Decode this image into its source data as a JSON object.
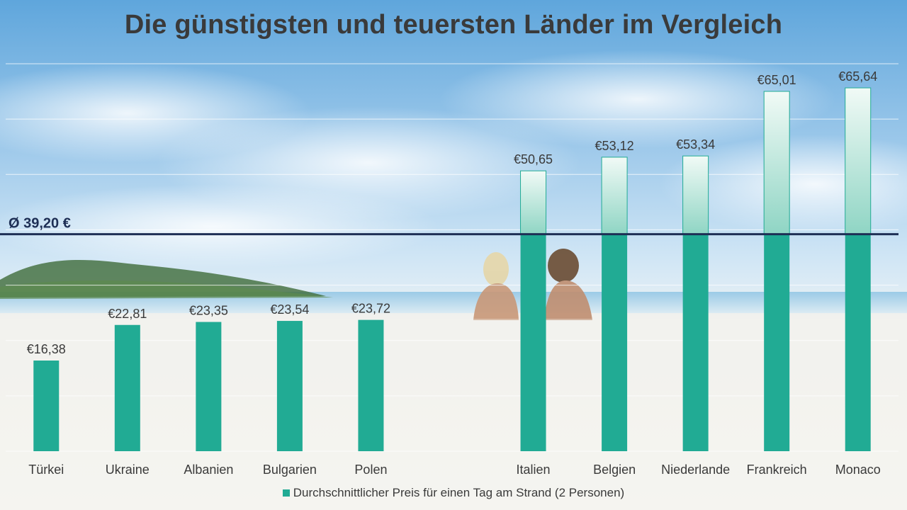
{
  "title": "Die günstigsten und teuersten Länder im Vergleich",
  "colors": {
    "bar": "#21ab94",
    "bar_light_top": "#f1faf6",
    "bar_light_bottom": "#8fd5c4",
    "average_line": "#1e2f55"
  },
  "chart_data": {
    "type": "bar",
    "title": "Die günstigsten und teuersten Länder im Vergleich",
    "categories": [
      "Türkei",
      "Ukraine",
      "Albanien",
      "Bulgarien",
      "Polen",
      "",
      "Italien",
      "Belgien",
      "Niederlande",
      "Frankreich",
      "Monaco"
    ],
    "series": [
      {
        "name": "Durchschnittlicher Preis für einen Tag am Strand (2 Personen)",
        "values": [
          16.38,
          22.81,
          23.35,
          23.54,
          23.72,
          null,
          50.65,
          53.12,
          53.34,
          65.01,
          65.64
        ],
        "labels": [
          "€16,38",
          "€22,81",
          "€23,35",
          "€23,54",
          "€23,72",
          "",
          "€50,65",
          "€53,12",
          "€53,34",
          "€65,01",
          "€65,64"
        ]
      }
    ],
    "average": {
      "value": 39.2,
      "label": "Ø 39,20 €"
    },
    "ylim": [
      0,
      70
    ],
    "y_gridlines": [
      0,
      10,
      20,
      30,
      40,
      50,
      60,
      70
    ],
    "xlabel": "",
    "ylabel": "",
    "legend_position": "bottom"
  },
  "legend": {
    "label": "Durchschnittlicher Preis für einen Tag am Strand (2 Personen)"
  }
}
